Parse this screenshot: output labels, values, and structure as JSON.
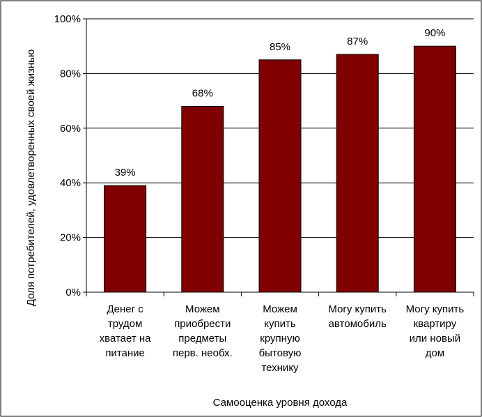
{
  "chart_data": {
    "type": "bar",
    "title": "",
    "xlabel": "Самооценка уровня дохода",
    "ylabel": "Доля потребителей, удовлетворенных своей жизнью",
    "ylim": [
      0,
      100
    ],
    "y_ticks": [
      0,
      20,
      40,
      60,
      80,
      100
    ],
    "y_tick_labels": [
      "0%",
      "20%",
      "40%",
      "60%",
      "80%",
      "100%"
    ],
    "grid": true,
    "legend": "none",
    "bar_color": "#800000",
    "categories": [
      [
        "Денег с",
        "трудом",
        "хватает на",
        "питание"
      ],
      [
        "Можем",
        "приобрести",
        "предметы",
        "перв. необх."
      ],
      [
        "Можем",
        "купить",
        "крупную",
        "бытовую",
        "технику"
      ],
      [
        "Могу купить",
        "автомобиль"
      ],
      [
        "Могу купить",
        "квартиру",
        "или новый",
        "дом"
      ]
    ],
    "values": [
      39,
      68,
      85,
      87,
      90
    ],
    "value_labels": [
      "39%",
      "68%",
      "85%",
      "87%",
      "90%"
    ]
  }
}
